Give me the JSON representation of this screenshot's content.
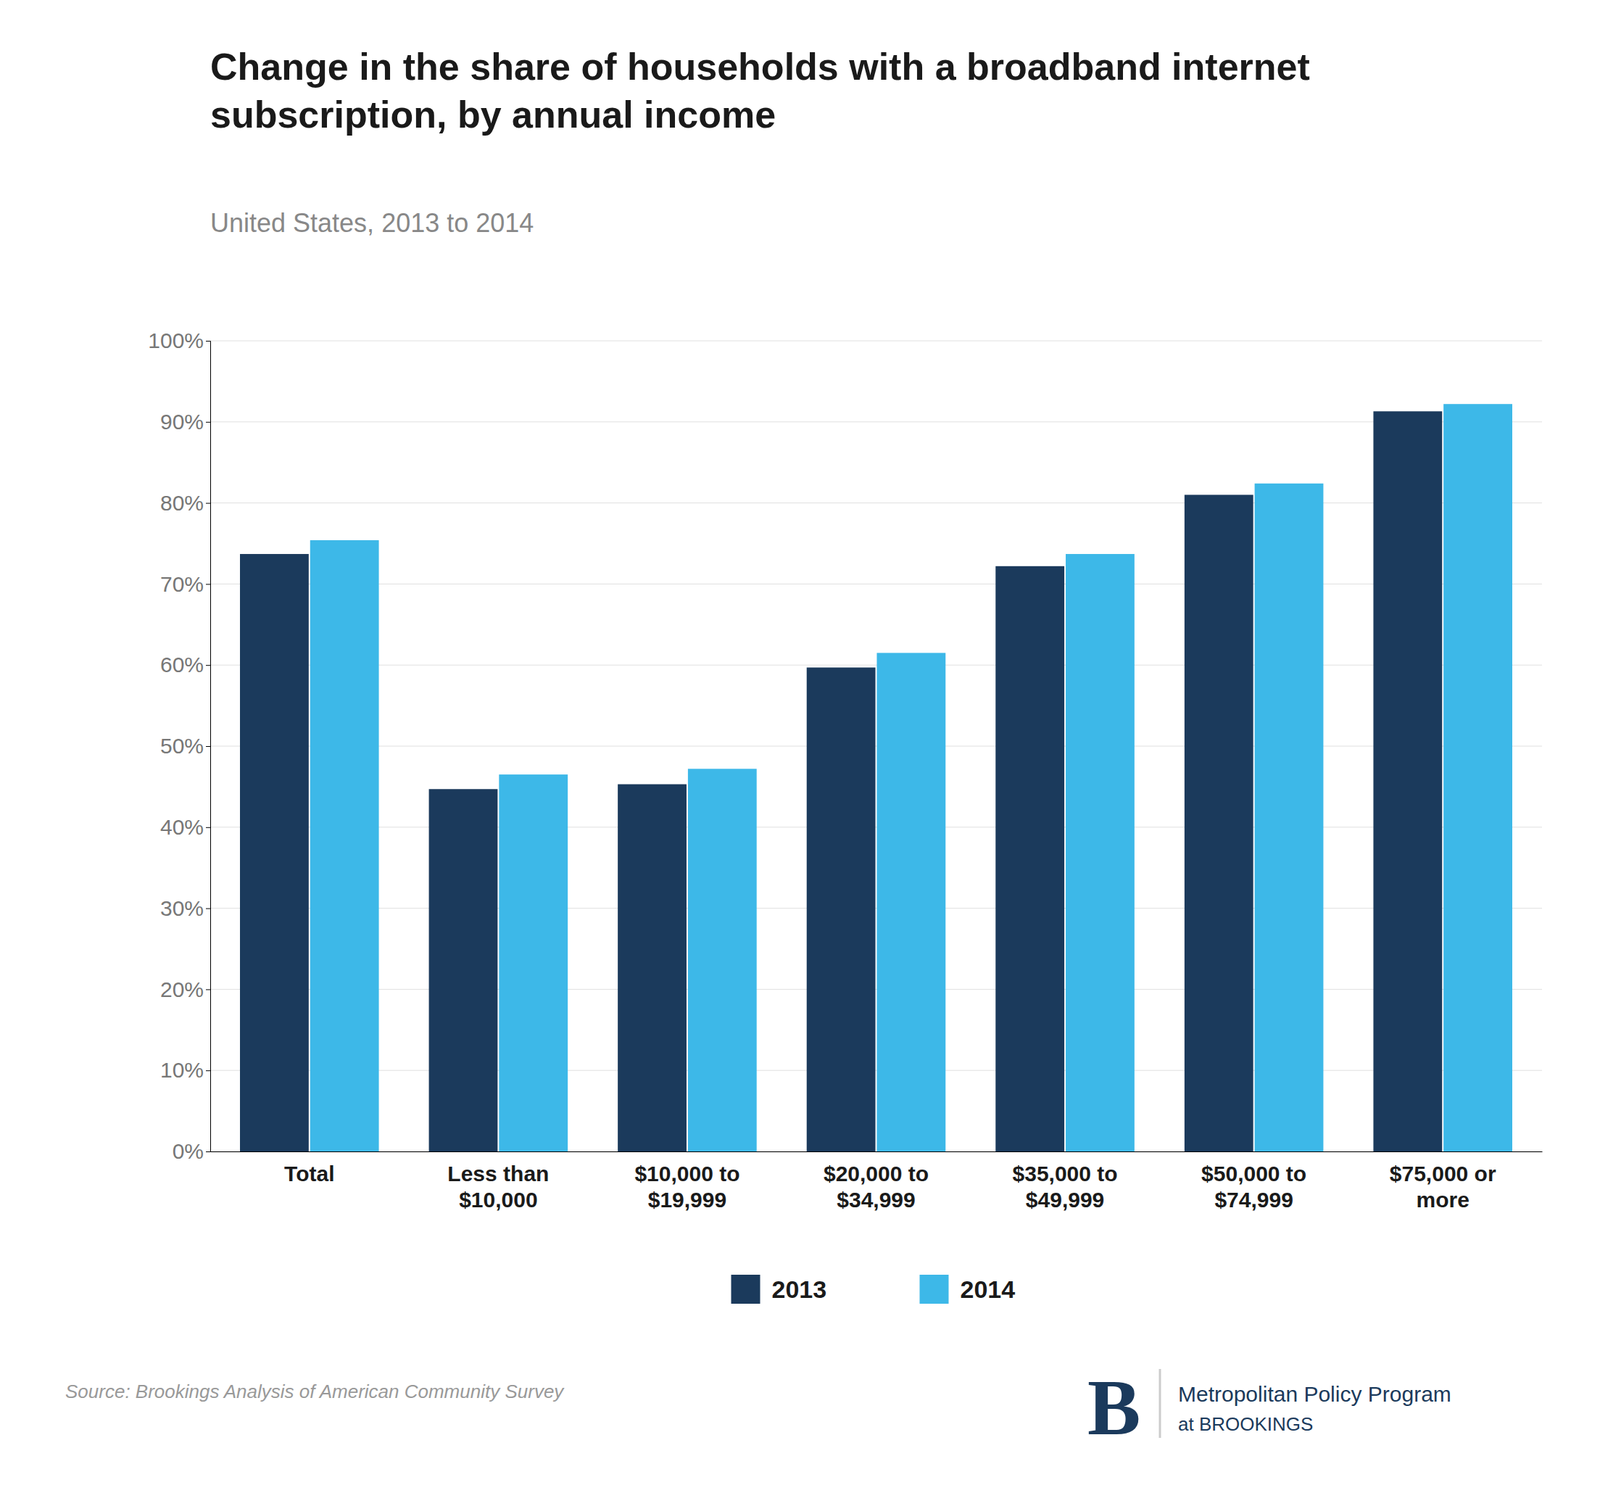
{
  "chart_data": {
    "type": "bar",
    "title": "Change in the share of households with a broadband internet\nsubscription, by annual income",
    "subtitle": "United States, 2013 to 2014",
    "categories": [
      "Total",
      "Less than\n$10,000",
      "$10,000 to\n$19,999",
      "$20,000 to\n$34,999",
      "$35,000 to\n$49,999",
      "$50,000 to\n$74,999",
      "$75,000 or\nmore"
    ],
    "series": [
      {
        "name": "2013",
        "color": "#1b3a5c",
        "values": [
          0.737,
          0.447,
          0.453,
          0.597,
          0.722,
          0.81,
          0.913
        ]
      },
      {
        "name": "2014",
        "color": "#3db8e8",
        "values": [
          0.754,
          0.465,
          0.472,
          0.615,
          0.737,
          0.824,
          0.922
        ]
      }
    ],
    "ylim": [
      0,
      1.0
    ],
    "yticks": [
      {
        "value": 0.0,
        "label": "0%"
      },
      {
        "value": 0.1,
        "label": "10%"
      },
      {
        "value": 0.2,
        "label": "20%"
      },
      {
        "value": 0.3,
        "label": "30%"
      },
      {
        "value": 0.4,
        "label": "40%"
      },
      {
        "value": 0.5,
        "label": "50%"
      },
      {
        "value": 0.6,
        "label": "60%"
      },
      {
        "value": 0.7,
        "label": "70%"
      },
      {
        "value": 0.8,
        "label": "80%"
      },
      {
        "value": 0.9,
        "label": "90%"
      },
      {
        "value": 1.0,
        "label": "100%"
      }
    ],
    "grid": true,
    "legend": "bottom",
    "annotations": [
      "Source: Brookings Analysis of American Community Survey",
      "B",
      "Metropolitan Policy Program",
      "at BROOKINGS"
    ]
  }
}
